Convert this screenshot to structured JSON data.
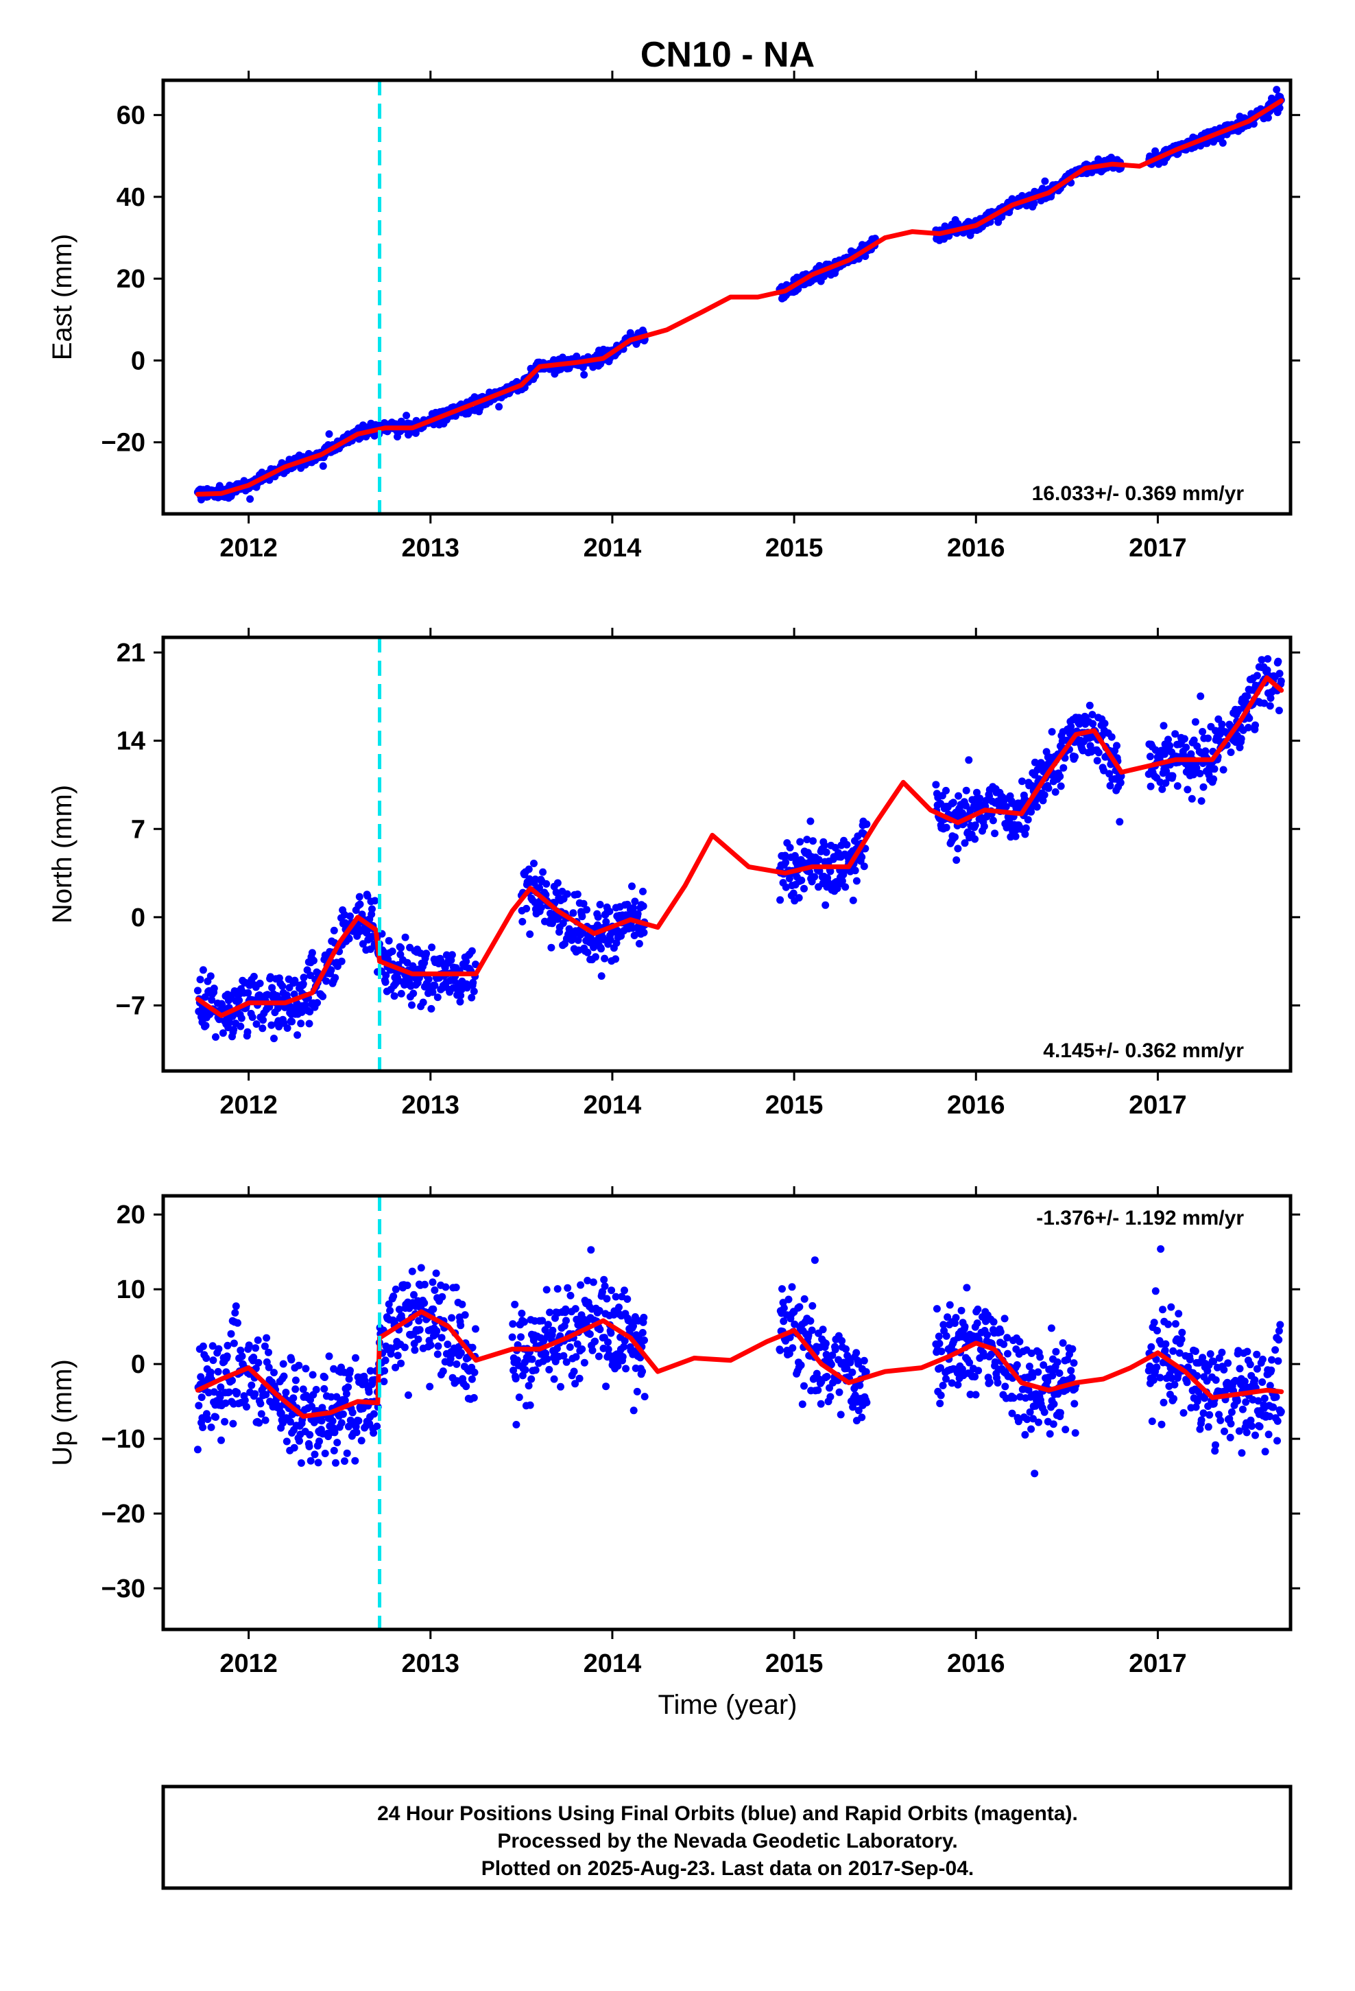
{
  "title": "CN10 - NA",
  "xlabel": "Time (year)",
  "x_tick_labels": [
    "2012",
    "2013",
    "2014",
    "2015",
    "2016",
    "2017"
  ],
  "colors": {
    "points": "#0000ff",
    "model": "#ff0000",
    "equipment_change": "#00e5ee",
    "axes": "#000000"
  },
  "footer": {
    "line1": "24 Hour Positions Using Final Orbits (blue) and Rapid Orbits (magenta).",
    "line2": "Processed by the Nevada Geodetic Laboratory.",
    "line3": "Plotted on 2025-Aug-23. Last data on 2017-Sep-04."
  },
  "chart_data": [
    {
      "type": "scatter",
      "component": "East",
      "ylabel": "East (mm)",
      "xlim": [
        2011.53,
        2017.73
      ],
      "ylim": [
        -37.5,
        68.5
      ],
      "yticks": [
        -20,
        0,
        20,
        40,
        60
      ],
      "rate_label": "16.033+/- 0.369 mm/yr",
      "rate_position": "bottom-right",
      "equipment_change_year": 2012.72,
      "data_segments": [
        [
          2011.72,
          2014.18
        ],
        [
          2014.92,
          2015.45
        ],
        [
          2015.78,
          2016.8
        ],
        [
          2016.95,
          2017.68
        ]
      ],
      "point_scatter_mm": 1.1,
      "model": {
        "x": [
          2011.72,
          2011.85,
          2012.0,
          2012.2,
          2012.4,
          2012.6,
          2012.75,
          2012.9,
          2013.1,
          2013.3,
          2013.5,
          2013.6,
          2013.8,
          2013.95,
          2014.1,
          2014.3,
          2014.5,
          2014.65,
          2014.8,
          2014.95,
          2015.1,
          2015.3,
          2015.5,
          2015.65,
          2015.8,
          2016.0,
          2016.2,
          2016.4,
          2016.6,
          2016.75,
          2016.9,
          2017.1,
          2017.3,
          2017.5,
          2017.68
        ],
        "y": [
          -32.7,
          -32.5,
          -30.5,
          -26.0,
          -23.0,
          -18.0,
          -16.5,
          -16.5,
          -13.0,
          -9.5,
          -6.0,
          -1.5,
          -0.5,
          0.5,
          5.0,
          7.5,
          12.0,
          15.5,
          15.5,
          17.0,
          21.0,
          24.5,
          30.0,
          31.5,
          31.0,
          33.0,
          38.0,
          41.0,
          47.0,
          48.0,
          47.5,
          51.5,
          55.0,
          58.5,
          63.5
        ]
      }
    },
    {
      "type": "scatter",
      "component": "North",
      "ylabel": "North (mm)",
      "xlim": [
        2011.53,
        2017.73
      ],
      "ylim": [
        -12.2,
        22.2
      ],
      "yticks": [
        -7,
        0,
        7,
        14,
        21
      ],
      "rate_label": "4.145+/- 0.362 mm/yr",
      "rate_position": "bottom-right",
      "equipment_change_year": 2012.72,
      "data_segments": [
        [
          2011.72,
          2013.25
        ],
        [
          2013.5,
          2014.18
        ],
        [
          2014.92,
          2015.4
        ],
        [
          2015.78,
          2016.8
        ],
        [
          2016.95,
          2017.68
        ]
      ],
      "point_scatter_mm": 1.6,
      "model": {
        "x": [
          2011.72,
          2011.85,
          2012.0,
          2012.2,
          2012.35,
          2012.5,
          2012.6,
          2012.7,
          2012.72,
          2012.9,
          2013.05,
          2013.25,
          2013.45,
          2013.55,
          2013.7,
          2013.9,
          2014.1,
          2014.25,
          2014.4,
          2014.55,
          2014.75,
          2014.95,
          2015.1,
          2015.3,
          2015.45,
          2015.6,
          2015.75,
          2015.9,
          2016.05,
          2016.25,
          2016.4,
          2016.55,
          2016.65,
          2016.8,
          2016.95,
          2017.1,
          2017.3,
          2017.45,
          2017.6,
          2017.68
        ],
        "y": [
          -6.5,
          -7.8,
          -6.8,
          -6.8,
          -6.0,
          -2.0,
          0.0,
          -1.0,
          -3.5,
          -4.5,
          -4.5,
          -4.5,
          0.5,
          2.3,
          0.5,
          -1.3,
          -0.2,
          -0.8,
          2.5,
          6.5,
          4.0,
          3.5,
          4.0,
          4.0,
          7.5,
          10.7,
          8.5,
          7.5,
          8.5,
          8.2,
          11.5,
          14.5,
          14.8,
          11.5,
          12.0,
          12.5,
          12.5,
          15.5,
          19.0,
          18.0
        ]
      }
    },
    {
      "type": "scatter",
      "component": "Up",
      "ylabel": "Up (mm)",
      "xlim": [
        2011.53,
        2017.73
      ],
      "ylim": [
        -35.5,
        22.5
      ],
      "yticks": [
        -30,
        -20,
        -10,
        0,
        10,
        20
      ],
      "rate_label": "-1.376+/- 1.192 mm/yr",
      "rate_position": "top-right",
      "equipment_change_year": 2012.72,
      "data_segments": [
        [
          2011.72,
          2013.25
        ],
        [
          2013.45,
          2014.18
        ],
        [
          2014.92,
          2015.4
        ],
        [
          2015.78,
          2016.55
        ],
        [
          2016.95,
          2017.68
        ]
      ],
      "point_scatter_mm": 4.5,
      "model": {
        "x": [
          2011.72,
          2011.85,
          2012.0,
          2012.15,
          2012.3,
          2012.45,
          2012.6,
          2012.71,
          2012.72,
          2012.85,
          2012.95,
          2013.1,
          2013.25,
          2013.45,
          2013.6,
          2013.75,
          2013.95,
          2014.1,
          2014.25,
          2014.45,
          2014.65,
          2014.85,
          2015.0,
          2015.15,
          2015.3,
          2015.5,
          2015.7,
          2015.85,
          2016.0,
          2016.1,
          2016.25,
          2016.4,
          2016.55,
          2016.7,
          2016.85,
          2017.0,
          2017.15,
          2017.3,
          2017.45,
          2017.6,
          2017.68
        ],
        "y": [
          -3.5,
          -2.0,
          -0.5,
          -4.0,
          -7.0,
          -6.5,
          -5.0,
          -5.2,
          3.5,
          5.5,
          7.0,
          5.0,
          0.5,
          2.0,
          2.0,
          3.5,
          5.8,
          3.5,
          -1.0,
          0.8,
          0.5,
          3.0,
          4.5,
          0.0,
          -2.5,
          -1.0,
          -0.5,
          1.0,
          2.8,
          2.0,
          -2.5,
          -3.5,
          -2.5,
          -2.0,
          -0.5,
          1.5,
          -1.0,
          -4.5,
          -4.0,
          -3.5,
          -3.7
        ]
      }
    }
  ]
}
